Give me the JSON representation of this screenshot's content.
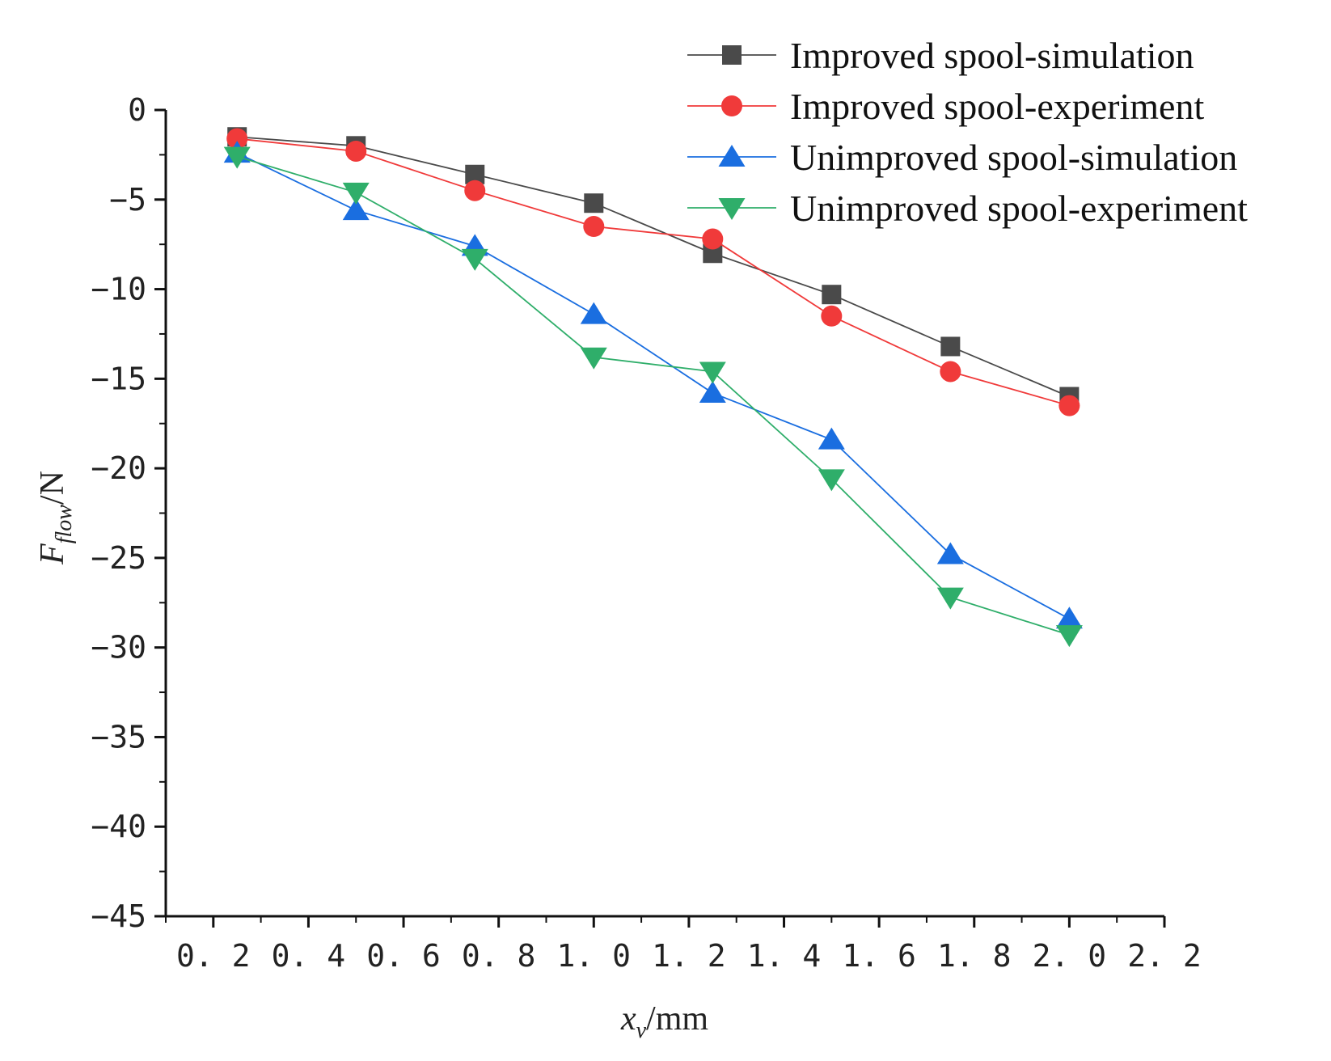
{
  "chart_data": {
    "type": "line",
    "title": "",
    "xlabel": {
      "main": "x",
      "sub": "v",
      "unit": "/mm"
    },
    "ylabel": {
      "main": "F",
      "sub": "flow",
      "unit": "/N"
    },
    "xlim": [
      0.1,
      2.2
    ],
    "ylim": [
      -45,
      0
    ],
    "xticks": [
      0.2,
      0.4,
      0.6,
      0.8,
      1.0,
      1.2,
      1.4,
      1.6,
      1.8,
      2.0,
      2.2
    ],
    "xtick_labels": [
      "0. 2",
      "0. 4",
      "0. 6",
      "0. 8",
      "1. 0",
      "1. 2",
      "1. 4",
      "1. 6",
      "1. 8",
      "2. 0",
      "2. 2"
    ],
    "yticks": [
      0,
      -5,
      -10,
      -15,
      -20,
      -25,
      -30,
      -35,
      -40,
      -45
    ],
    "ytick_labels": [
      "0",
      "−5",
      "−10",
      "−15",
      "−20",
      "−25",
      "−30",
      "−35",
      "−40",
      "−45"
    ],
    "legend_position": "top-right",
    "x": [
      0.25,
      0.5,
      0.75,
      1.0,
      1.25,
      1.5,
      1.75,
      2.0
    ],
    "series": [
      {
        "name": "Improved spool-simulation",
        "marker": "square",
        "color": "#4a4a4a",
        "values": [
          -1.5,
          -2.0,
          -3.6,
          -5.2,
          -8.0,
          -10.3,
          -13.2,
          -16.0
        ]
      },
      {
        "name": "Improved spool-experiment",
        "marker": "circle",
        "color": "#f03a3a",
        "values": [
          -1.6,
          -2.3,
          -4.5,
          -6.5,
          -7.2,
          -11.5,
          -14.6,
          -16.5
        ]
      },
      {
        "name": "Unimproved spool-simulation",
        "marker": "triangle-up",
        "color": "#1a6ee0",
        "values": [
          -2.4,
          -5.6,
          -7.6,
          -11.4,
          -15.8,
          -18.4,
          -24.8,
          -28.4
        ]
      },
      {
        "name": "Unimproved spool-experiment",
        "marker": "triangle-down",
        "color": "#2fae6a",
        "values": [
          -2.6,
          -4.6,
          -8.3,
          -13.8,
          -14.6,
          -20.6,
          -27.2,
          -29.3
        ]
      }
    ]
  }
}
